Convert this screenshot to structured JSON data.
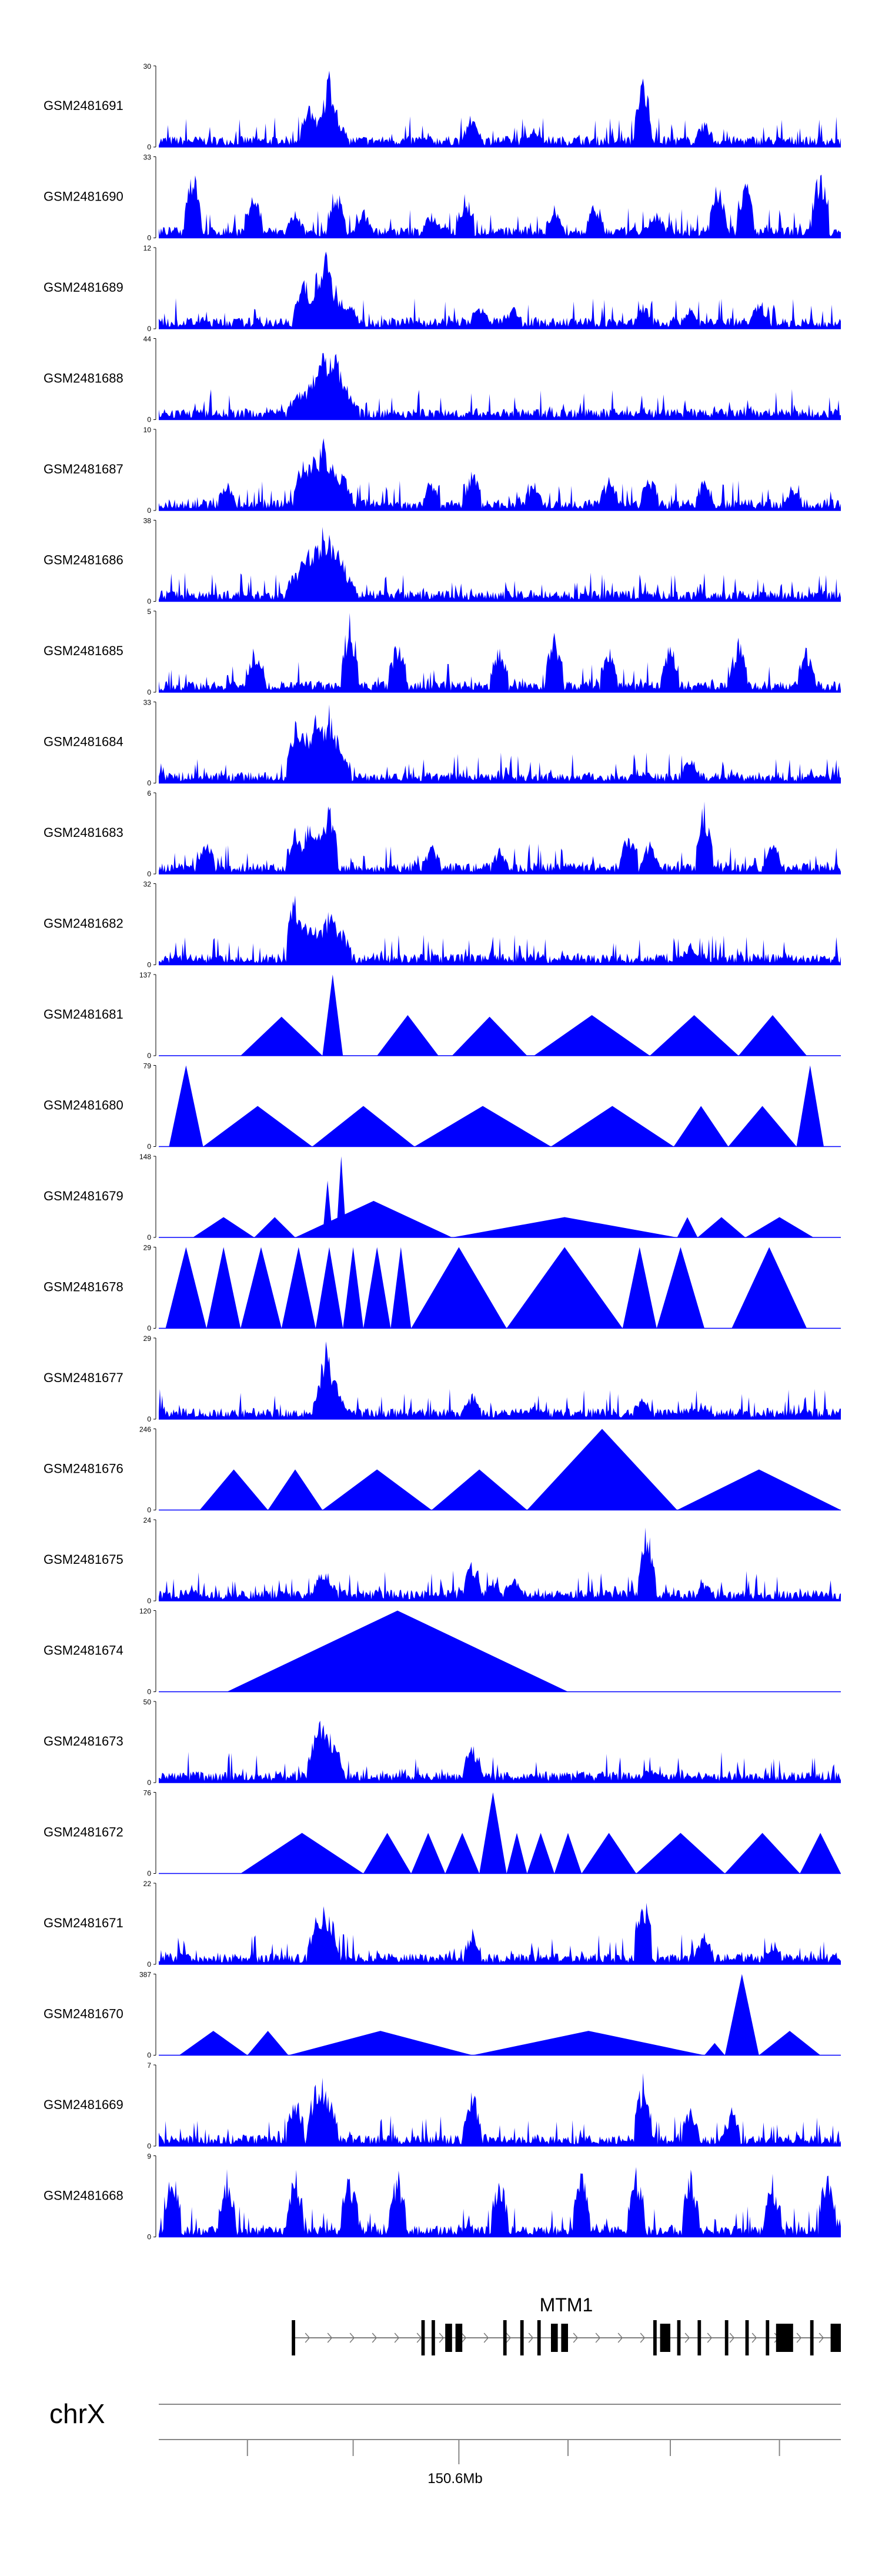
{
  "chart_data": {
    "type": "area",
    "title": "",
    "description": "Genome browser coverage tracks (24 samples) over the MTM1 locus on chrX",
    "chromosome": "chrX",
    "axis_label": "150.6Mb",
    "gene": {
      "name": "MTM1",
      "strand": "+"
    },
    "fill_color": "#0000ff",
    "tracks": [
      {
        "name": "GSM2481691",
        "ymax": 30,
        "ymin": 0,
        "peaks": [
          [
            0.22,
            0.55
          ],
          [
            0.23,
            0.4
          ],
          [
            0.24,
            0.45
          ],
          [
            0.245,
            0.6
          ],
          [
            0.25,
            1.0
          ],
          [
            0.258,
            0.5
          ],
          [
            0.265,
            0.35
          ],
          [
            0.46,
            0.45
          ],
          [
            0.71,
            0.95
          ],
          [
            0.8,
            0.35
          ],
          [
            0.55,
            0.25
          ]
        ]
      },
      {
        "name": "GSM2481690",
        "ymax": 33,
        "ymin": 0,
        "peaks": [
          [
            0.05,
            1.0
          ],
          [
            0.14,
            0.6
          ],
          [
            0.2,
            0.35
          ],
          [
            0.26,
            0.7
          ],
          [
            0.3,
            0.4
          ],
          [
            0.4,
            0.35
          ],
          [
            0.45,
            0.6
          ],
          [
            0.58,
            0.45
          ],
          [
            0.64,
            0.5
          ],
          [
            0.73,
            0.35
          ],
          [
            0.82,
            0.75
          ],
          [
            0.86,
            0.8
          ],
          [
            0.97,
            0.95
          ]
        ]
      },
      {
        "name": "GSM2481689",
        "ymax": 12,
        "ymin": 0,
        "peaks": [
          [
            0.21,
            0.6
          ],
          [
            0.215,
            0.7
          ],
          [
            0.235,
            0.9
          ],
          [
            0.245,
            1.0
          ],
          [
            0.26,
            0.55
          ],
          [
            0.28,
            0.4
          ],
          [
            0.47,
            0.35
          ],
          [
            0.52,
            0.3
          ],
          [
            0.71,
            0.35
          ],
          [
            0.78,
            0.3
          ],
          [
            0.88,
            0.35
          ]
        ]
      },
      {
        "name": "GSM2481688",
        "ymax": 44,
        "ymin": 0,
        "peaks": [
          [
            0.2,
            0.35
          ],
          [
            0.21,
            0.45
          ],
          [
            0.22,
            0.5
          ],
          [
            0.23,
            0.65
          ],
          [
            0.24,
            0.9
          ],
          [
            0.25,
            1.0
          ],
          [
            0.26,
            0.85
          ],
          [
            0.27,
            0.6
          ],
          [
            0.28,
            0.35
          ],
          [
            0.46,
            0.08
          ],
          [
            0.71,
            0.1
          ]
        ]
      },
      {
        "name": "GSM2481687",
        "ymax": 10,
        "ymin": 0,
        "peaks": [
          [
            0.21,
            0.7
          ],
          [
            0.225,
            0.8
          ],
          [
            0.24,
            1.0
          ],
          [
            0.255,
            0.8
          ],
          [
            0.27,
            0.5
          ],
          [
            0.1,
            0.4
          ],
          [
            0.4,
            0.45
          ],
          [
            0.46,
            0.55
          ],
          [
            0.55,
            0.4
          ],
          [
            0.66,
            0.45
          ],
          [
            0.72,
            0.5
          ],
          [
            0.8,
            0.45
          ],
          [
            0.93,
            0.35
          ]
        ]
      },
      {
        "name": "GSM2481686",
        "ymax": 38,
        "ymin": 0,
        "peaks": [
          [
            0.2,
            0.5
          ],
          [
            0.21,
            0.55
          ],
          [
            0.22,
            0.65
          ],
          [
            0.23,
            0.8
          ],
          [
            0.24,
            1.0
          ],
          [
            0.25,
            0.9
          ],
          [
            0.26,
            0.75
          ],
          [
            0.27,
            0.55
          ],
          [
            0.28,
            0.3
          ],
          [
            0.47,
            0.07
          ],
          [
            0.71,
            0.08
          ]
        ]
      },
      {
        "name": "GSM2481685",
        "ymax": 5,
        "ymin": 0,
        "peaks": [
          [
            0.28,
            1.0
          ],
          [
            0.14,
            0.6
          ],
          [
            0.35,
            0.7
          ],
          [
            0.5,
            0.65
          ],
          [
            0.58,
            0.75
          ],
          [
            0.66,
            0.6
          ],
          [
            0.75,
            0.65
          ],
          [
            0.85,
            0.7
          ],
          [
            0.95,
            0.6
          ]
        ]
      },
      {
        "name": "GSM2481684",
        "ymax": 33,
        "ymin": 0,
        "peaks": [
          [
            0.2,
            0.8
          ],
          [
            0.21,
            0.85
          ],
          [
            0.22,
            0.75
          ],
          [
            0.23,
            0.9
          ],
          [
            0.24,
            0.95
          ],
          [
            0.25,
            1.0
          ],
          [
            0.26,
            0.7
          ],
          [
            0.27,
            0.4
          ],
          [
            0.71,
            0.15
          ],
          [
            0.78,
            0.35
          ]
        ]
      },
      {
        "name": "GSM2481683",
        "ymax": 6,
        "ymin": 0,
        "peaks": [
          [
            0.2,
            0.6
          ],
          [
            0.22,
            0.7
          ],
          [
            0.24,
            0.8
          ],
          [
            0.25,
            1.0
          ],
          [
            0.07,
            0.45
          ],
          [
            0.4,
            0.4
          ],
          [
            0.5,
            0.35
          ],
          [
            0.69,
            0.6
          ],
          [
            0.72,
            0.5
          ],
          [
            0.8,
            0.95
          ],
          [
            0.9,
            0.45
          ]
        ]
      },
      {
        "name": "GSM2481682",
        "ymax": 32,
        "ymin": 0,
        "peaks": [
          [
            0.2,
            0.95
          ],
          [
            0.21,
            0.7
          ],
          [
            0.22,
            0.55
          ],
          [
            0.235,
            0.65
          ],
          [
            0.25,
            0.8
          ],
          [
            0.26,
            0.6
          ],
          [
            0.27,
            0.45
          ],
          [
            0.78,
            0.3
          ],
          [
            0.6,
            0.1
          ]
        ]
      },
      {
        "name": "GSM2481681",
        "ymax": 137,
        "ymin": 0,
        "tris": [
          [
            0.12,
            0.24,
            0.48
          ],
          [
            0.24,
            0.27,
            1.0
          ],
          [
            0.32,
            0.41,
            0.5
          ],
          [
            0.43,
            0.54,
            0.48
          ],
          [
            0.55,
            0.72,
            0.5
          ],
          [
            0.72,
            0.85,
            0.5
          ],
          [
            0.85,
            0.95,
            0.5
          ]
        ]
      },
      {
        "name": "GSM2481680",
        "ymax": 79,
        "ymin": 0,
        "tris": [
          [
            0.015,
            0.065,
            1.0
          ],
          [
            0.065,
            0.225,
            0.5
          ],
          [
            0.225,
            0.375,
            0.5
          ],
          [
            0.375,
            0.575,
            0.5
          ],
          [
            0.575,
            0.755,
            0.5
          ],
          [
            0.755,
            0.835,
            0.5
          ],
          [
            0.835,
            0.935,
            0.5
          ],
          [
            0.935,
            0.975,
            1.0
          ]
        ]
      },
      {
        "name": "GSM2481679",
        "ymax": 148,
        "ymin": 0,
        "tris": [
          [
            0.05,
            0.14,
            0.25
          ],
          [
            0.14,
            0.2,
            0.25
          ],
          [
            0.2,
            0.43,
            0.45
          ],
          [
            0.24,
            0.255,
            0.7
          ],
          [
            0.26,
            0.275,
            1.0
          ],
          [
            0.43,
            0.76,
            0.25
          ],
          [
            0.76,
            0.79,
            0.25
          ],
          [
            0.79,
            0.86,
            0.25
          ],
          [
            0.86,
            0.96,
            0.25
          ]
        ]
      },
      {
        "name": "GSM2481678",
        "ymax": 29,
        "ymin": 0,
        "tris": [
          [
            0.01,
            0.07,
            1.0
          ],
          [
            0.07,
            0.12,
            1.0
          ],
          [
            0.12,
            0.18,
            1.0
          ],
          [
            0.18,
            0.23,
            1.0
          ],
          [
            0.23,
            0.27,
            1.0
          ],
          [
            0.27,
            0.3,
            1.0
          ],
          [
            0.3,
            0.34,
            1.0
          ],
          [
            0.34,
            0.37,
            1.0
          ],
          [
            0.37,
            0.51,
            1.0
          ],
          [
            0.51,
            0.68,
            1.0
          ],
          [
            0.68,
            0.73,
            1.0
          ],
          [
            0.73,
            0.8,
            1.0
          ],
          [
            0.84,
            0.95,
            1.0
          ]
        ]
      },
      {
        "name": "GSM2481677",
        "ymax": 29,
        "ymin": 0,
        "peaks": [
          [
            0.24,
            0.5
          ],
          [
            0.245,
            1.0
          ],
          [
            0.255,
            0.6
          ],
          [
            0.265,
            0.3
          ],
          [
            0.46,
            0.35
          ],
          [
            0.55,
            0.2
          ],
          [
            0.71,
            0.3
          ],
          [
            0.8,
            0.2
          ]
        ]
      },
      {
        "name": "GSM2481676",
        "ymax": 246,
        "ymin": 0,
        "tris": [
          [
            0.06,
            0.16,
            0.5
          ],
          [
            0.16,
            0.24,
            0.5
          ],
          [
            0.24,
            0.4,
            0.5
          ],
          [
            0.4,
            0.54,
            0.5
          ],
          [
            0.54,
            0.76,
            1.0
          ],
          [
            0.76,
            1.0,
            0.5
          ]
        ]
      },
      {
        "name": "GSM2481675",
        "ymax": 24,
        "ymin": 0,
        "peaks": [
          [
            0.24,
            0.45
          ],
          [
            0.25,
            0.3
          ],
          [
            0.46,
            0.55
          ],
          [
            0.49,
            0.3
          ],
          [
            0.52,
            0.35
          ],
          [
            0.715,
            1.0
          ],
          [
            0.8,
            0.25
          ]
        ]
      },
      {
        "name": "GSM2481674",
        "ymax": 120,
        "ymin": 0,
        "tris": [
          [
            0.1,
            0.6,
            1.0
          ]
        ]
      },
      {
        "name": "GSM2481673",
        "ymax": 50,
        "ymin": 0,
        "peaks": [
          [
            0.23,
            0.7
          ],
          [
            0.24,
            1.0
          ],
          [
            0.25,
            0.75
          ],
          [
            0.26,
            0.5
          ],
          [
            0.46,
            0.55
          ],
          [
            0.72,
            0.2
          ],
          [
            0.55,
            0.1
          ]
        ]
      },
      {
        "name": "GSM2481672",
        "ymax": 76,
        "ymin": 0,
        "tris": [
          [
            0.12,
            0.3,
            0.5
          ],
          [
            0.3,
            0.37,
            0.5
          ],
          [
            0.37,
            0.42,
            0.5
          ],
          [
            0.42,
            0.47,
            0.5
          ],
          [
            0.47,
            0.51,
            1.0
          ],
          [
            0.51,
            0.54,
            0.5
          ],
          [
            0.54,
            0.58,
            0.5
          ],
          [
            0.58,
            0.62,
            0.5
          ],
          [
            0.62,
            0.7,
            0.5
          ],
          [
            0.7,
            0.83,
            0.5
          ],
          [
            0.83,
            0.94,
            0.5
          ],
          [
            0.94,
            1.0,
            0.5
          ]
        ]
      },
      {
        "name": "GSM2481671",
        "ymax": 22,
        "ymin": 0,
        "peaks": [
          [
            0.23,
            0.6
          ],
          [
            0.24,
            0.8
          ],
          [
            0.25,
            0.7
          ],
          [
            0.46,
            0.45
          ],
          [
            0.71,
            1.0
          ],
          [
            0.8,
            0.4
          ],
          [
            0.9,
            0.3
          ]
        ]
      },
      {
        "name": "GSM2481670",
        "ymax": 387,
        "ymin": 0,
        "tris": [
          [
            0.03,
            0.13,
            0.3
          ],
          [
            0.13,
            0.19,
            0.3
          ],
          [
            0.19,
            0.46,
            0.3
          ],
          [
            0.46,
            0.8,
            0.3
          ],
          [
            0.8,
            0.83,
            0.15
          ],
          [
            0.83,
            0.88,
            1.0
          ],
          [
            0.88,
            0.97,
            0.3
          ]
        ]
      },
      {
        "name": "GSM2481669",
        "ymax": 7,
        "ymin": 0,
        "peaks": [
          [
            0.2,
            0.7
          ],
          [
            0.23,
            0.85
          ],
          [
            0.24,
            0.95
          ],
          [
            0.25,
            0.7
          ],
          [
            0.46,
            0.75
          ],
          [
            0.71,
            0.9
          ],
          [
            0.78,
            0.55
          ],
          [
            0.84,
            0.5
          ]
        ]
      },
      {
        "name": "GSM2481668",
        "ymax": 9,
        "ymin": 0,
        "peaks": [
          [
            0.02,
            1.0
          ],
          [
            0.1,
            0.85
          ],
          [
            0.2,
            0.9
          ],
          [
            0.28,
            0.85
          ],
          [
            0.35,
            0.9
          ],
          [
            0.5,
            0.8
          ],
          [
            0.62,
            0.85
          ],
          [
            0.7,
            0.9
          ],
          [
            0.78,
            0.85
          ],
          [
            0.9,
            0.8
          ],
          [
            0.98,
            0.9
          ]
        ]
      }
    ],
    "gene_model": {
      "start": 0.195,
      "end": 1.0,
      "exons": [
        [
          0.195,
          0.2
        ],
        [
          0.385,
          0.39
        ],
        [
          0.4,
          0.405
        ],
        [
          0.42,
          0.43
        ],
        [
          0.435,
          0.445
        ],
        [
          0.505,
          0.51
        ],
        [
          0.53,
          0.535
        ],
        [
          0.555,
          0.56
        ],
        [
          0.575,
          0.585
        ],
        [
          0.59,
          0.6
        ],
        [
          0.725,
          0.73
        ],
        [
          0.735,
          0.75
        ],
        [
          0.76,
          0.765
        ],
        [
          0.79,
          0.795
        ],
        [
          0.83,
          0.835
        ],
        [
          0.86,
          0.865
        ],
        [
          0.89,
          0.895
        ],
        [
          0.905,
          0.93
        ],
        [
          0.955,
          0.96
        ],
        [
          0.985,
          1.0
        ]
      ]
    },
    "axis": {
      "ticks": [
        0.13,
        0.285,
        0.44,
        0.6,
        0.75,
        0.91
      ],
      "labeled_tick": 0.44
    }
  }
}
